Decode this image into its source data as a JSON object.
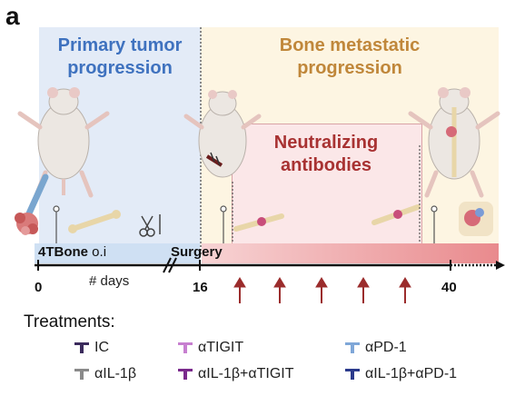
{
  "panel_letter": "a",
  "phases": {
    "primary_title_line1": "Primary tumor",
    "primary_title_line2": "progression",
    "bone_title_line1": "Bone metastatic",
    "bone_title_line2": "progression",
    "neutral_title_line1": "Neutralizing",
    "neutral_title_line2": "antibodies"
  },
  "timeline": {
    "injection_bold": "4TBone",
    "injection_rest": " o.i",
    "surgery": "Surgery",
    "days_label": "# days",
    "ticks": [
      "0",
      "16",
      "40"
    ],
    "antibody_arrow_count": 5
  },
  "treatments": {
    "title": "Treatments:",
    "items": [
      {
        "label": "IC",
        "color": "#3b2a5c"
      },
      {
        "label": "αTIGIT",
        "color": "#c77fd0"
      },
      {
        "label": "αPD-1",
        "color": "#7fa7d8"
      },
      {
        "label": "αIL-1β",
        "color": "#8a8a8a"
      },
      {
        "label": "αIL-1β+αTIGIT",
        "color": "#7a2a8c"
      },
      {
        "label": "αIL-1β+αPD-1",
        "color": "#2b3a8c"
      }
    ]
  },
  "colors": {
    "primary_accent": "#3f72bf",
    "bone_accent": "#c0873a",
    "neutral_accent": "#a83232",
    "arrow": "#9b2c2c"
  }
}
